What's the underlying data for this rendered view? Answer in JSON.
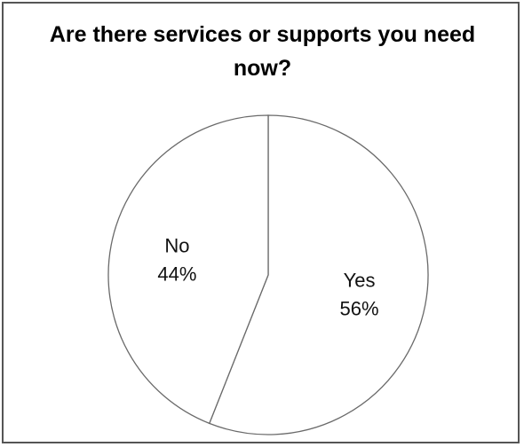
{
  "chart_data": {
    "type": "pie",
    "title": "Are there services or supports you need now?",
    "title_lines": [
      "Are there services or supports you need",
      "now?"
    ],
    "categories": [
      "Yes",
      "No"
    ],
    "values": [
      56,
      44
    ],
    "labels": [
      "56%",
      "44%"
    ],
    "start": "12 o'clock",
    "direction": "clockwise",
    "legend": "none",
    "colors": {
      "slice_fill": "#ffffff",
      "slice_stroke": "#6a6a6a",
      "frame": "#555555"
    }
  }
}
